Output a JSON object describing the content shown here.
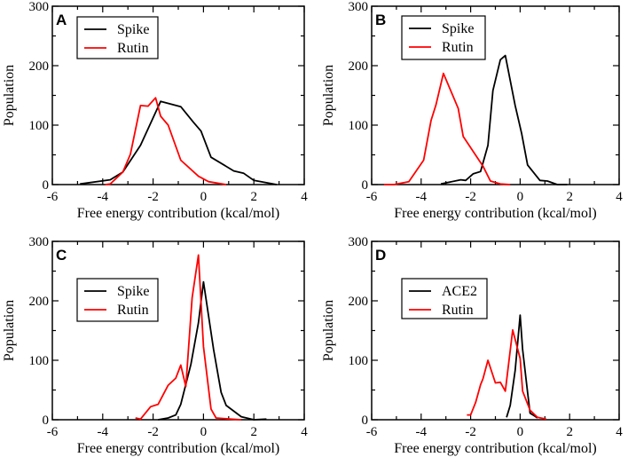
{
  "chart_data": [
    {
      "type": "line",
      "panel_label": "A",
      "xlabel": "Free energy contribution (kcal/mol)",
      "ylabel": "Population",
      "xlim": [
        -6,
        4
      ],
      "ylim": [
        0,
        300
      ],
      "xticks": [
        "-6",
        "-4",
        "-2",
        "0",
        "2",
        "4"
      ],
      "yticks": [
        "0",
        "100",
        "200",
        "300"
      ],
      "legend": "top-left",
      "series": [
        {
          "name": "Spike",
          "color": "#000000",
          "x": [
            -4.9,
            -3.7,
            -3.2,
            -2.5,
            -1.7,
            -0.9,
            -0.4,
            -0.1,
            0.3,
            1.2,
            1.6,
            2.0,
            2.9
          ],
          "y": [
            1,
            8,
            21,
            66,
            140,
            131,
            105,
            90,
            46,
            23,
            19,
            7,
            0
          ]
        },
        {
          "name": "Rutin",
          "color": "#ff0000",
          "x": [
            -3.9,
            -3.7,
            -3.2,
            -2.9,
            -2.5,
            -2.2,
            -1.9,
            -1.7,
            -1.4,
            -0.9,
            -0.2,
            0.2,
            0.9
          ],
          "y": [
            0,
            1,
            21,
            51,
            133,
            132,
            146,
            115,
            100,
            41,
            14,
            5,
            0
          ]
        }
      ]
    },
    {
      "type": "line",
      "panel_label": "B",
      "xlabel": "Free energy contribution (kcal/mol)",
      "ylabel": "Population",
      "xlim": [
        -6,
        4
      ],
      "ylim": [
        0,
        300
      ],
      "xticks": [
        "-6",
        "-4",
        "-2",
        "0",
        "2",
        "4"
      ],
      "yticks": [
        "0",
        "100",
        "200",
        "300"
      ],
      "legend": "top-left",
      "series": [
        {
          "name": "Spike",
          "color": "#000000",
          "x": [
            -3.2,
            -2.4,
            -2.2,
            -1.9,
            -1.6,
            -1.3,
            -1.1,
            -0.8,
            -0.6,
            -0.2,
            0.06,
            0.3,
            0.8,
            1.1,
            1.5,
            1.9
          ],
          "y": [
            1,
            8,
            7,
            18,
            22,
            66,
            158,
            210,
            217,
            133,
            86,
            33,
            7,
            6,
            0,
            0
          ]
        },
        {
          "name": "Rutin",
          "color": "#ff0000",
          "x": [
            -5.5,
            -5.1,
            -4.5,
            -3.9,
            -3.6,
            -3.4,
            -3.1,
            -2.5,
            -2.3,
            -1.5,
            -1.2,
            -0.8,
            -0.4
          ],
          "y": [
            0,
            0,
            5,
            41,
            108,
            134,
            187,
            128,
            81,
            31,
            6,
            1,
            0
          ]
        }
      ]
    },
    {
      "type": "line",
      "panel_label": "C",
      "xlabel": "Free energy contribution (kcal/mol)",
      "ylabel": "Population",
      "xlim": [
        -6,
        4
      ],
      "ylim": [
        0,
        300
      ],
      "xticks": [
        "-6",
        "-4",
        "-2",
        "0",
        "2",
        "4"
      ],
      "yticks": [
        "0",
        "100",
        "200",
        "300"
      ],
      "legend": "upper-left",
      "series": [
        {
          "name": "Spike",
          "color": "#000000",
          "x": [
            -1.8,
            -1.4,
            -1.1,
            -0.9,
            -0.5,
            -0.2,
            0,
            0.4,
            0.7,
            0.9,
            1.5,
            2.0,
            2.5
          ],
          "y": [
            0,
            3,
            8,
            26,
            93,
            163,
            232,
            118,
            46,
            24,
            5,
            0,
            1
          ]
        },
        {
          "name": "Rutin",
          "color": "#ff0000",
          "x": [
            -2.7,
            -2.5,
            -2.1,
            -1.8,
            -1.4,
            -1.1,
            -0.9,
            -0.7,
            -0.45,
            -0.2,
            0,
            0.3,
            0.5,
            1.1,
            1.5
          ],
          "y": [
            3,
            1,
            22,
            26,
            58,
            70,
            92,
            56,
            205,
            277,
            123,
            18,
            3,
            1,
            0
          ]
        }
      ]
    },
    {
      "type": "line",
      "panel_label": "D",
      "xlabel": "Free energy contribution (kcal/mol)",
      "ylabel": "Population",
      "xlim": [
        -6,
        4
      ],
      "ylim": [
        0,
        300
      ],
      "xticks": [
        "-6",
        "-4",
        "-2",
        "0",
        "2",
        "4"
      ],
      "yticks": [
        "0",
        "100",
        "200",
        "300"
      ],
      "legend": "upper-left",
      "series": [
        {
          "name": "ACE2",
          "color": "#000000",
          "x": [
            -0.55,
            -0.4,
            -0.2,
            0,
            0.1,
            0.3,
            0.4,
            0.6,
            0.7
          ],
          "y": [
            4,
            24,
            83,
            176,
            118,
            46,
            11,
            6,
            3
          ]
        },
        {
          "name": "Rutin",
          "color": "#ff0000",
          "x": [
            -2.15,
            -2,
            -1.8,
            -1.6,
            -1.5,
            -1.3,
            -1.0,
            -0.8,
            -0.6,
            -0.3,
            0,
            0.1,
            0.4,
            0.7,
            1.05
          ],
          "y": [
            8,
            8,
            29,
            59,
            69,
            100,
            62,
            63,
            48,
            151,
            103,
            48,
            16,
            4,
            1
          ]
        }
      ]
    }
  ]
}
